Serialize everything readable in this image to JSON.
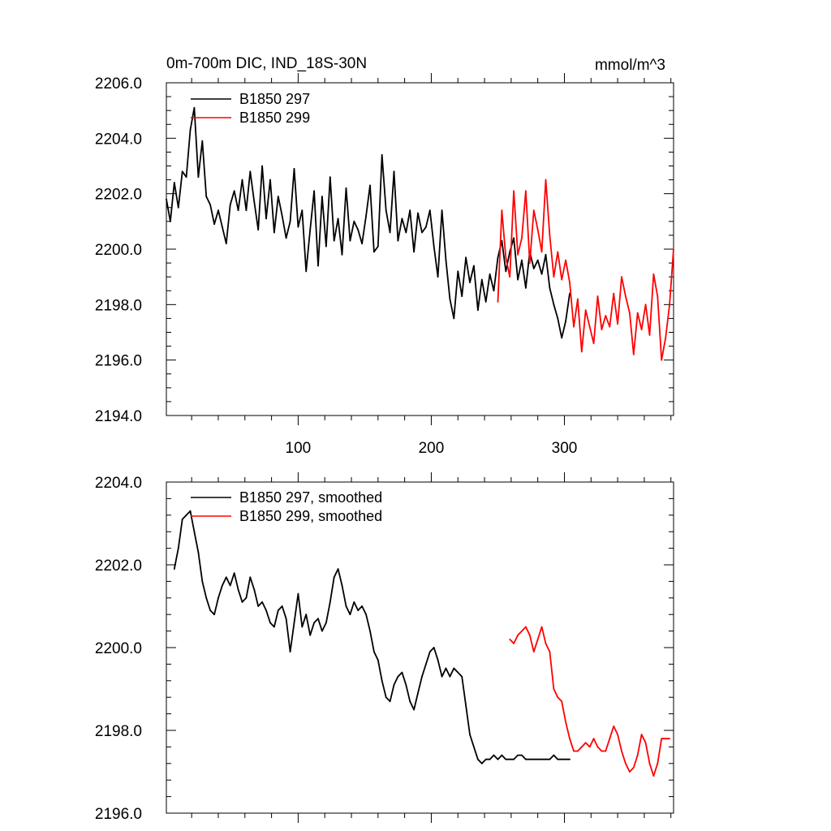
{
  "figure": {
    "title": "0m-700m DIC, IND_18S-30N",
    "units": "mmol/m^3"
  },
  "chart_data": [
    {
      "type": "line",
      "title": "0m-700m DIC, IND_18S-30N",
      "units": "mmol/m^3",
      "xlabel": "",
      "ylabel": "",
      "xlim": [
        1,
        382
      ],
      "ylim": [
        2194,
        2206
      ],
      "xticks": [
        100,
        200,
        300
      ],
      "xtick_labels": [
        "100",
        "200",
        "300"
      ],
      "yticks": [
        2194,
        2196,
        2198,
        2200,
        2202,
        2204,
        2206
      ],
      "ytick_labels": [
        "2194.0",
        "2196.0",
        "2198.0",
        "2200.0",
        "2202.0",
        "2204.0",
        "2206.0"
      ],
      "legend_position": "top-left",
      "series": [
        {
          "name": "B1850 297",
          "color": "#000000",
          "x": [
            1,
            4,
            7,
            10,
            13,
            16,
            19,
            22,
            25,
            28,
            31,
            34,
            37,
            40,
            43,
            46,
            49,
            52,
            55,
            58,
            61,
            64,
            67,
            70,
            73,
            76,
            79,
            82,
            85,
            88,
            91,
            94,
            97,
            100,
            103,
            106,
            109,
            112,
            115,
            118,
            121,
            124,
            127,
            130,
            133,
            136,
            139,
            142,
            145,
            148,
            151,
            154,
            157,
            160,
            163,
            166,
            169,
            172,
            175,
            178,
            181,
            184,
            187,
            190,
            193,
            196,
            199,
            202,
            205,
            208,
            211,
            214,
            217,
            220,
            223,
            226,
            229,
            232,
            235,
            238,
            241,
            244,
            247,
            250,
            253,
            256,
            259,
            262,
            265,
            268,
            271,
            274,
            277,
            280,
            283,
            286,
            289,
            292,
            295,
            298,
            301,
            304
          ],
          "values": [
            2201.8,
            2201.0,
            2202.4,
            2201.5,
            2202.8,
            2202.6,
            2204.3,
            2205.1,
            2202.6,
            2203.9,
            2201.9,
            2201.6,
            2200.9,
            2201.4,
            2200.8,
            2200.2,
            2201.6,
            2202.1,
            2201.4,
            2202.5,
            2201.4,
            2202.8,
            2201.7,
            2200.7,
            2203.0,
            2201.1,
            2202.5,
            2200.6,
            2201.9,
            2201.2,
            2200.4,
            2201.0,
            2202.9,
            2200.8,
            2201.4,
            2199.2,
            2200.7,
            2202.1,
            2199.4,
            2201.9,
            2200.1,
            2202.6,
            2200.3,
            2201.1,
            2199.8,
            2202.2,
            2200.3,
            2201.0,
            2200.7,
            2200.2,
            2201.2,
            2202.3,
            2199.9,
            2200.1,
            2203.4,
            2201.4,
            2200.6,
            2202.8,
            2200.3,
            2201.1,
            2200.6,
            2201.4,
            2199.9,
            2201.3,
            2200.6,
            2200.8,
            2201.4,
            2200.1,
            2199.0,
            2201.4,
            2199.6,
            2198.2,
            2197.5,
            2199.2,
            2198.3,
            2199.7,
            2198.8,
            2199.4,
            2197.8,
            2198.9,
            2198.1,
            2199.1,
            2198.5,
            2199.7,
            2200.3,
            2199.2,
            2199.9,
            2200.4,
            2198.9,
            2199.6,
            2198.6,
            2199.9,
            2199.3,
            2199.6,
            2199.1,
            2199.8,
            2198.6,
            2198.0,
            2197.5,
            2196.8,
            2197.4,
            2198.4
          ]
        },
        {
          "name": "B1850 299",
          "color": "#ff0000",
          "x": [
            250,
            253,
            256,
            259,
            262,
            265,
            268,
            271,
            274,
            277,
            280,
            283,
            286,
            289,
            292,
            295,
            298,
            301,
            304,
            307,
            310,
            313,
            316,
            319,
            322,
            325,
            328,
            331,
            334,
            337,
            340,
            343,
            346,
            349,
            352,
            355,
            358,
            361,
            364,
            367,
            370,
            373,
            376,
            379,
            382
          ],
          "values": [
            2198.1,
            2201.4,
            2199.7,
            2199.0,
            2202.1,
            2199.8,
            2200.4,
            2202.1,
            2199.5,
            2201.4,
            2200.7,
            2199.9,
            2202.5,
            2200.5,
            2199.0,
            2199.9,
            2198.9,
            2199.6,
            2198.8,
            2197.2,
            2198.2,
            2196.3,
            2197.8,
            2197.2,
            2196.6,
            2198.3,
            2197.1,
            2197.6,
            2197.2,
            2198.4,
            2197.3,
            2199.0,
            2198.3,
            2197.7,
            2196.2,
            2197.7,
            2197.1,
            2198.0,
            2196.9,
            2199.1,
            2198.3,
            2196.0,
            2196.8,
            2198.0,
            2200.0
          ]
        }
      ]
    },
    {
      "type": "line",
      "title": "",
      "xlabel": "",
      "ylabel": "",
      "xlim": [
        1,
        382
      ],
      "ylim": [
        2196,
        2204
      ],
      "xticks": [
        100,
        200,
        300
      ],
      "yticks": [
        2196,
        2198,
        2200,
        2202,
        2204
      ],
      "ytick_labels": [
        "2196.0",
        "2198.0",
        "2200.0",
        "2202.0",
        "2204.0"
      ],
      "legend_position": "top-left",
      "series": [
        {
          "name": "B1850 297, smoothed",
          "color": "#000000",
          "x": [
            7,
            10,
            13,
            16,
            19,
            22,
            25,
            28,
            31,
            34,
            37,
            40,
            43,
            46,
            49,
            52,
            55,
            58,
            61,
            64,
            67,
            70,
            73,
            76,
            79,
            82,
            85,
            88,
            91,
            94,
            97,
            100,
            103,
            106,
            109,
            112,
            115,
            118,
            121,
            124,
            127,
            130,
            133,
            136,
            139,
            142,
            145,
            148,
            151,
            154,
            157,
            160,
            163,
            166,
            169,
            172,
            175,
            178,
            181,
            184,
            187,
            190,
            193,
            196,
            199,
            202,
            205,
            208,
            211,
            214,
            217,
            220,
            223,
            226,
            229,
            232,
            235,
            238,
            241,
            244,
            247,
            250,
            253,
            256,
            259,
            262,
            265,
            268,
            271,
            274,
            277,
            280,
            283,
            286,
            289,
            292,
            295,
            298,
            301,
            304
          ],
          "values": [
            2201.9,
            2202.4,
            2203.1,
            2203.2,
            2203.3,
            2202.8,
            2202.3,
            2201.6,
            2201.2,
            2200.9,
            2200.8,
            2201.2,
            2201.5,
            2201.7,
            2201.5,
            2201.8,
            2201.4,
            2201.1,
            2201.2,
            2201.7,
            2201.4,
            2201.0,
            2201.1,
            2200.9,
            2200.6,
            2200.5,
            2200.9,
            2201.0,
            2200.7,
            2199.9,
            2200.6,
            2201.3,
            2200.5,
            2200.8,
            2200.3,
            2200.6,
            2200.7,
            2200.4,
            2200.6,
            2201.1,
            2201.7,
            2201.9,
            2201.5,
            2201.0,
            2200.8,
            2201.1,
            2200.9,
            2201.0,
            2200.8,
            2200.4,
            2199.9,
            2199.7,
            2199.2,
            2198.8,
            2198.7,
            2199.1,
            2199.3,
            2199.4,
            2199.1,
            2198.7,
            2198.5,
            2198.9,
            2199.3,
            2199.6,
            2199.9,
            2200.0,
            2199.7,
            2199.3,
            2199.5,
            2199.3,
            2199.5,
            2199.4,
            2199.3,
            2198.6,
            2197.9,
            2197.6,
            2197.3,
            2197.2,
            2197.3,
            2197.3,
            2197.4,
            2197.3,
            2197.4,
            2197.3,
            2197.3,
            2197.3,
            2197.4,
            2197.4,
            2197.3,
            2197.3,
            2197.3,
            2197.3,
            2197.3,
            2197.3,
            2197.3,
            2197.4,
            2197.3,
            2197.3,
            2197.3,
            2197.3
          ]
        },
        {
          "name": "B1850 299, smoothed",
          "color": "#ff0000",
          "x": [
            259,
            262,
            265,
            268,
            271,
            274,
            277,
            280,
            283,
            286,
            289,
            292,
            295,
            298,
            301,
            304,
            307,
            310,
            313,
            316,
            319,
            322,
            325,
            328,
            331,
            334,
            337,
            340,
            343,
            346,
            349,
            352,
            355,
            358,
            361,
            364,
            367,
            370,
            373,
            376,
            379
          ],
          "values": [
            2200.2,
            2200.1,
            2200.3,
            2200.4,
            2200.5,
            2200.3,
            2199.9,
            2200.2,
            2200.5,
            2200.1,
            2199.9,
            2199.0,
            2198.8,
            2198.7,
            2198.2,
            2197.8,
            2197.5,
            2197.5,
            2197.6,
            2197.7,
            2197.6,
            2197.8,
            2197.6,
            2197.5,
            2197.5,
            2197.8,
            2198.1,
            2197.9,
            2197.5,
            2197.2,
            2197.0,
            2197.1,
            2197.4,
            2197.9,
            2197.7,
            2197.2,
            2196.9,
            2197.2,
            2197.8,
            2197.8,
            2197.8
          ]
        }
      ]
    }
  ]
}
